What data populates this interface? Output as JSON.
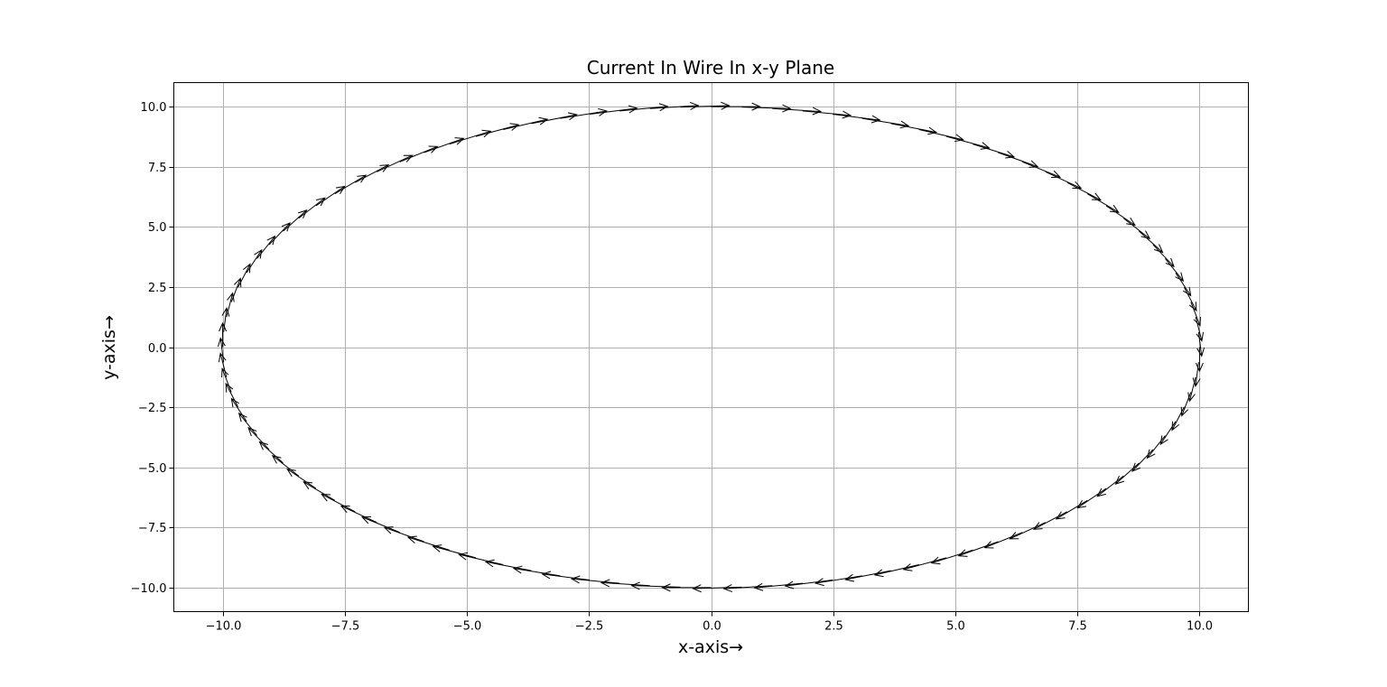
{
  "chart_data": {
    "type": "quiver",
    "title": "Current In Wire In x-y Plane",
    "xlabel": "x-axis→",
    "ylabel": "y-axis→",
    "xlim": [
      -11,
      11
    ],
    "ylim": [
      -11,
      11
    ],
    "xticks": [
      -10.0,
      -7.5,
      -5.0,
      -2.5,
      0.0,
      2.5,
      5.0,
      7.5,
      10.0
    ],
    "yticks": [
      -10.0,
      -7.5,
      -5.0,
      -2.5,
      0.0,
      2.5,
      5.0,
      7.5,
      10.0
    ],
    "xtick_labels": [
      "−10.0",
      "−7.5",
      "−5.0",
      "−2.5",
      "0.0",
      "2.5",
      "5.0",
      "7.5",
      "10.0"
    ],
    "ytick_labels": [
      "−10.0",
      "−7.5",
      "−5.0",
      "−2.5",
      "0.0",
      "2.5",
      "5.0",
      "7.5",
      "10.0"
    ],
    "grid": true,
    "wire": {
      "shape": "circle",
      "radius": 10,
      "center": [
        0,
        0
      ],
      "segments": 100,
      "direction": "clockwise",
      "arrow_length": 1.0
    }
  }
}
